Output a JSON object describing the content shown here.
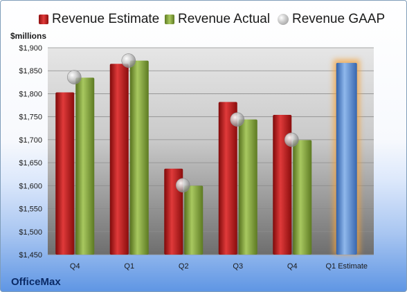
{
  "legend": {
    "estimate": "Revenue Estimate",
    "actual": "Revenue Actual",
    "gaap": "Revenue GAAP"
  },
  "units_label": "$millions",
  "company": "OfficeMax",
  "colors": {
    "estimate": "#c81e1e",
    "actual": "#8cac45",
    "gaap": "#b8b8b8",
    "forecast": "#5b8fd3",
    "forecast_glow": "#f5a33a"
  },
  "chart_data": {
    "type": "bar",
    "categories": [
      "Q4",
      "Q1",
      "Q2",
      "Q3",
      "Q4",
      "Q1 Estimate"
    ],
    "ylim": [
      1450,
      1900
    ],
    "yticks": [
      "$1,450",
      "$1,500",
      "$1,550",
      "$1,600",
      "$1,650",
      "$1,700",
      "$1,750",
      "$1,800",
      "$1,850",
      "$1,900"
    ],
    "ylabel": "$millions",
    "grid": true,
    "legend_position": "top",
    "series": [
      {
        "name": "Revenue Estimate",
        "type": "bar",
        "values": [
          1803,
          1865,
          1637,
          1782,
          1754,
          null
        ]
      },
      {
        "name": "Revenue Actual",
        "type": "bar",
        "values": [
          1835,
          1872,
          1600,
          1744,
          1699,
          null
        ]
      },
      {
        "name": "Revenue GAAP",
        "type": "marker",
        "values": [
          1836,
          1872,
          1601,
          1744,
          1700,
          null
        ]
      },
      {
        "name": "",
        "type": "forecast",
        "values": [
          null,
          null,
          null,
          null,
          null,
          1867
        ]
      }
    ]
  }
}
